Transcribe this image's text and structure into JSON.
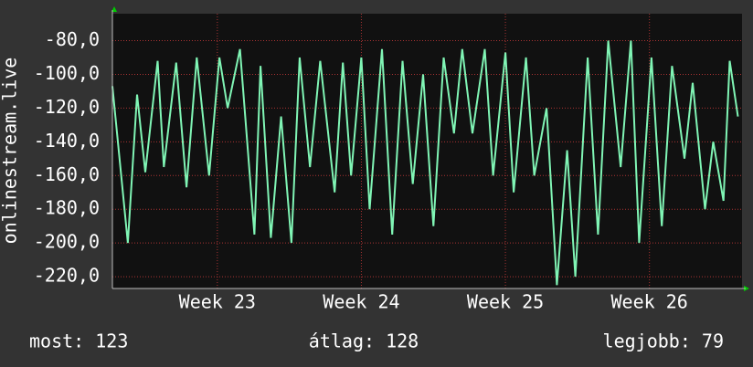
{
  "chart_data": {
    "type": "line",
    "y_label": "onlinestream.live",
    "x": [
      0,
      0.75,
      1.2,
      1.6,
      2.2,
      2.5,
      3.1,
      3.6,
      4.1,
      4.7,
      5.2,
      5.6,
      6.2,
      6.9,
      7.2,
      7.7,
      8.2,
      8.7,
      9.1,
      9.6,
      10.1,
      10.8,
      11.2,
      11.6,
      12.1,
      12.5,
      13.1,
      13.6,
      14.1,
      14.6,
      15.1,
      15.6,
      16.1,
      16.6,
      17,
      17.5,
      18.1,
      18.5,
      19.1,
      19.5,
      20.1,
      20.5,
      21.1,
      21.6,
      22.1,
      22.5,
      23.1,
      23.6,
      24.1,
      24.7,
      25.2,
      25.6,
      26.2,
      26.7,
      27.2,
      27.8,
      28.2,
      28.8,
      29.2,
      29.7,
      30,
      30.4
    ],
    "values": [
      -107,
      -200,
      -112,
      -158,
      -92,
      -155,
      -93,
      -167,
      -90,
      -160,
      -90,
      -120,
      -85,
      -195,
      -95,
      -197,
      -125,
      -200,
      -90,
      -155,
      -92,
      -170,
      -93,
      -160,
      -90,
      -180,
      -85,
      -195,
      -92,
      -165,
      -100,
      -190,
      -90,
      -135,
      -85,
      -135,
      -85,
      -160,
      -87,
      -170,
      -90,
      -160,
      -120,
      -225,
      -145,
      -220,
      -90,
      -195,
      -80,
      -155,
      -80,
      -200,
      -90,
      -190,
      -95,
      -150,
      -105,
      -180,
      -140,
      -175,
      -92,
      -125
    ],
    "color": "#80f5b5",
    "xlim": [
      0,
      30.6
    ],
    "xticks": [
      {
        "value": 5.1,
        "label": "Week 23"
      },
      {
        "value": 12.1,
        "label": "Week 24"
      },
      {
        "value": 19.1,
        "label": "Week 25"
      },
      {
        "value": 26.1,
        "label": "Week 26"
      }
    ],
    "ylim": [
      -227,
      -64
    ],
    "yticks": [
      {
        "value": -80,
        "label": "-80,0"
      },
      {
        "value": -100,
        "label": "-100,0"
      },
      {
        "value": -120,
        "label": "-120,0"
      },
      {
        "value": -140,
        "label": "-140,0"
      },
      {
        "value": -160,
        "label": "-160,0"
      },
      {
        "value": -180,
        "label": "-180,0"
      },
      {
        "value": -200,
        "label": "-200,0"
      },
      {
        "value": -220,
        "label": "-220,0"
      }
    ],
    "grid": true,
    "footer": [
      "most: 123",
      "átlag: 128",
      "legjobb: 79"
    ]
  }
}
